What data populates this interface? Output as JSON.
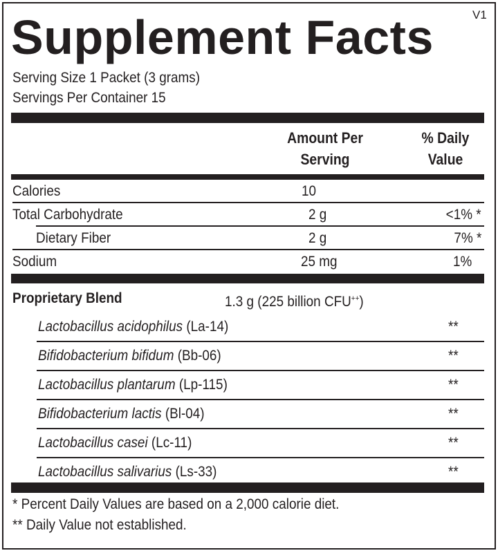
{
  "title": "Supplement Facts",
  "version": "V1",
  "serving_size": "Serving Size 1 Packet (3 grams)",
  "servings_per_container": "Servings Per Container 15",
  "headers": {
    "amount_line1": "Amount Per",
    "amount_line2": "Serving",
    "dv_line1": "% Daily",
    "dv_line2": "Value"
  },
  "nutrients": [
    {
      "name": "Calories",
      "amount": "10",
      "dv": ""
    },
    {
      "name": "Total Carbohydrate",
      "amount": "2 g",
      "dv": "<1% *"
    },
    {
      "name": "Dietary Fiber",
      "amount": "2 g",
      "dv": "7% *"
    },
    {
      "name": "Sodium",
      "amount": "25 mg",
      "dv": "1%"
    }
  ],
  "blend": {
    "name": "Proprietary Blend",
    "amount": "1.3 g (225 billion CFU",
    "superscript": "++",
    "close": ")"
  },
  "strains": [
    {
      "species": "Lactobacillus acidophilus",
      "strain": "(La-14)",
      "dv": "**"
    },
    {
      "species": "Bifidobacterium bifidum",
      "strain": "(Bb-06)",
      "dv": "**"
    },
    {
      "species": "Lactobacillus plantarum",
      "strain": "(Lp-115)",
      "dv": "**"
    },
    {
      "species": "Bifidobacterium lactis",
      "strain": "(Bl-04)",
      "dv": "**"
    },
    {
      "species": "Lactobacillus casei",
      "strain": "(Lc-11)",
      "dv": "**"
    },
    {
      "species": "Lactobacillus salivarius",
      "strain": "(Ls-33)",
      "dv": "**"
    }
  ],
  "footnotes": [
    "* Percent Daily Values are based on a 2,000 calorie diet.",
    "** Daily Value not established."
  ]
}
